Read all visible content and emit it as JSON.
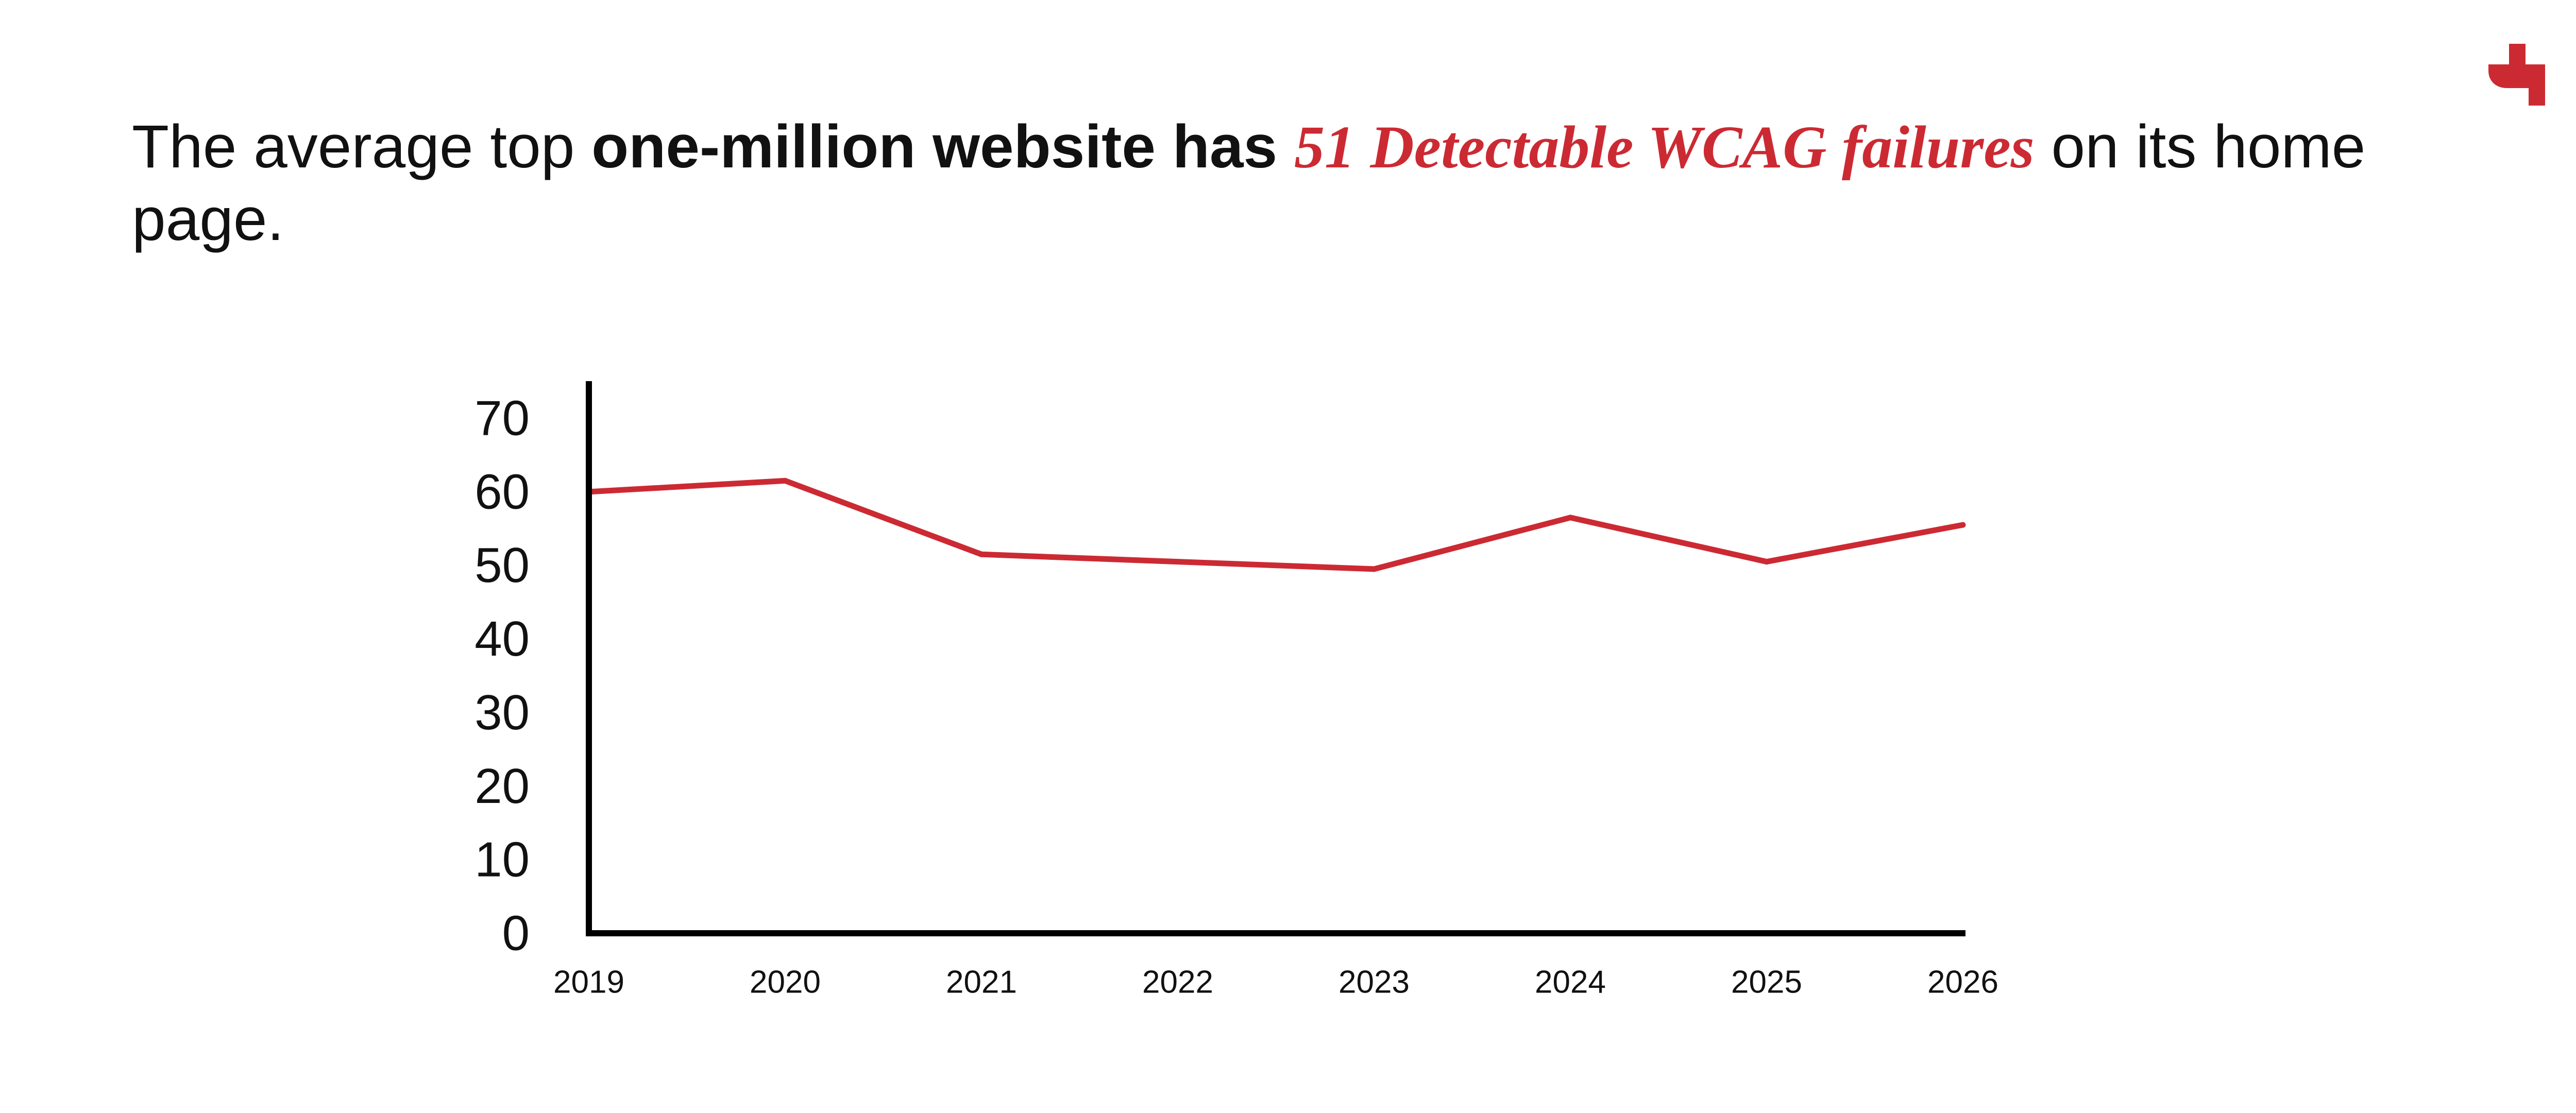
{
  "headline": {
    "part1": "The average top ",
    "part2_bold": "one-million website has",
    "part3_space": " ",
    "part4_accent": "51 Detectable WCAG failures",
    "part5": " on its home page."
  },
  "brand": {
    "accent_color": "#cc2a33",
    "logo_icon": "brand-logo-icon"
  },
  "chart_data": {
    "type": "line",
    "title": "",
    "xlabel": "",
    "ylabel": "",
    "categories": [
      "2019",
      "2020",
      "2021",
      "2022",
      "2023",
      "2024",
      "2025",
      "2026"
    ],
    "series": [
      {
        "values": [
          60,
          61.5,
          51.5,
          50.5,
          49.5,
          56.5,
          50.5,
          55.5
        ],
        "color": "#cc2a33"
      }
    ],
    "yticks": [
      0,
      10,
      20,
      30,
      40,
      50,
      60,
      70
    ],
    "ylim": [
      0,
      70
    ],
    "grid": false,
    "legend": "none"
  }
}
